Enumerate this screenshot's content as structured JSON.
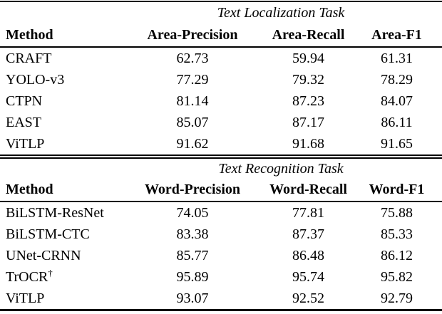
{
  "page": {
    "background_color": "#ffffff",
    "text_color": "#000000"
  },
  "localization_table": {
    "task_title": "Text Localization Task",
    "columns": [
      "Method",
      "Area-Precision",
      "Area-Recall",
      "Area-F1"
    ],
    "rows": [
      {
        "method": "CRAFT",
        "values": [
          "62.73",
          "59.94",
          "61.31"
        ]
      },
      {
        "method": "YOLO-v3",
        "values": [
          "77.29",
          "79.32",
          "78.29"
        ]
      },
      {
        "method": "CTPN",
        "values": [
          "81.14",
          "87.23",
          "84.07"
        ]
      },
      {
        "method": "EAST",
        "values": [
          "85.07",
          "87.17",
          "86.11"
        ]
      },
      {
        "method": "ViTLP",
        "values": [
          "91.62",
          "91.68",
          "91.65"
        ]
      }
    ]
  },
  "recognition_table": {
    "task_title": "Text Recognition Task",
    "columns": [
      "Method",
      "Word-Precision",
      "Word-Recall",
      "Word-F1"
    ],
    "rows": [
      {
        "method": "BiLSTM-ResNet",
        "values": [
          "74.05",
          "77.81",
          "75.88"
        ]
      },
      {
        "method": "BiLSTM-CTC",
        "values": [
          "83.38",
          "87.37",
          "85.33"
        ]
      },
      {
        "method": "UNet-CRNN",
        "values": [
          "85.77",
          "86.48",
          "86.12"
        ]
      },
      {
        "method": "TrOCR",
        "method_superscript": "†",
        "values": [
          "95.89",
          "95.74",
          "95.82"
        ]
      },
      {
        "method": "ViTLP",
        "values": [
          "93.07",
          "92.52",
          "92.79"
        ]
      }
    ]
  }
}
